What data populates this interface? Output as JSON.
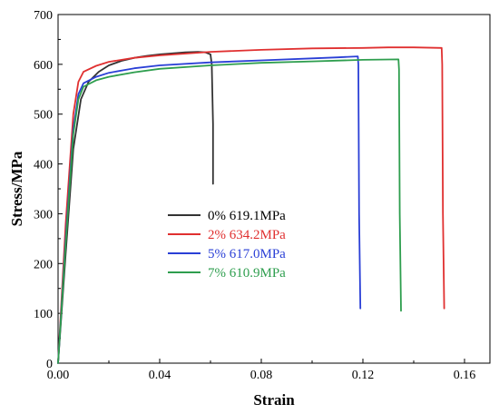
{
  "chart_data": {
    "type": "line",
    "title": "",
    "xlabel": "Strain",
    "ylabel": "Stress/MPa",
    "xlim": [
      0.0,
      0.17
    ],
    "ylim": [
      0,
      700
    ],
    "xticks": [
      "0.00",
      "0.04",
      "0.08",
      "0.12",
      "0.16"
    ],
    "xtick_values": [
      0.0,
      0.04,
      0.08,
      0.12,
      0.16
    ],
    "yticks": [
      "0",
      "100",
      "200",
      "300",
      "400",
      "500",
      "600",
      "700"
    ],
    "ytick_values": [
      0,
      100,
      200,
      300,
      400,
      500,
      600,
      700
    ],
    "grid": false,
    "legend_position": "center",
    "series": [
      {
        "name": "0% 619.1MPa",
        "color": "#333333",
        "x": [
          0.0,
          0.003,
          0.006,
          0.009,
          0.012,
          0.016,
          0.02,
          0.025,
          0.03,
          0.035,
          0.04,
          0.045,
          0.05,
          0.055,
          0.058,
          0.06,
          0.0605,
          0.061,
          0.061
        ],
        "y": [
          0,
          220,
          430,
          530,
          565,
          585,
          598,
          607,
          613,
          617,
          620,
          622,
          624,
          625,
          624,
          620,
          600,
          480,
          360
        ]
      },
      {
        "name": "2% 634.2MPa",
        "color": "#e03030",
        "x": [
          0.0,
          0.003,
          0.006,
          0.008,
          0.01,
          0.015,
          0.02,
          0.03,
          0.04,
          0.06,
          0.08,
          0.1,
          0.12,
          0.13,
          0.14,
          0.151,
          0.1512,
          0.1515,
          0.152
        ],
        "y": [
          0,
          280,
          500,
          565,
          585,
          597,
          605,
          613,
          618,
          625,
          629,
          632,
          633,
          634,
          634,
          633,
          600,
          300,
          110
        ]
      },
      {
        "name": "5% 617.0MPa",
        "color": "#2a3fd6",
        "x": [
          0.0,
          0.003,
          0.006,
          0.008,
          0.01,
          0.015,
          0.02,
          0.03,
          0.04,
          0.06,
          0.08,
          0.1,
          0.11,
          0.118,
          0.1182,
          0.1185,
          0.119
        ],
        "y": [
          0,
          250,
          470,
          540,
          562,
          575,
          583,
          592,
          598,
          604,
          608,
          612,
          614,
          616,
          600,
          300,
          110
        ]
      },
      {
        "name": "7% 610.9MPa",
        "color": "#2e9e4e",
        "x": [
          0.0,
          0.003,
          0.006,
          0.008,
          0.01,
          0.015,
          0.02,
          0.03,
          0.04,
          0.06,
          0.08,
          0.1,
          0.12,
          0.134,
          0.1342,
          0.1345,
          0.135
        ],
        "y": [
          0,
          240,
          460,
          530,
          555,
          568,
          575,
          584,
          591,
          598,
          603,
          606,
          609,
          610,
          590,
          300,
          105
        ]
      }
    ]
  }
}
